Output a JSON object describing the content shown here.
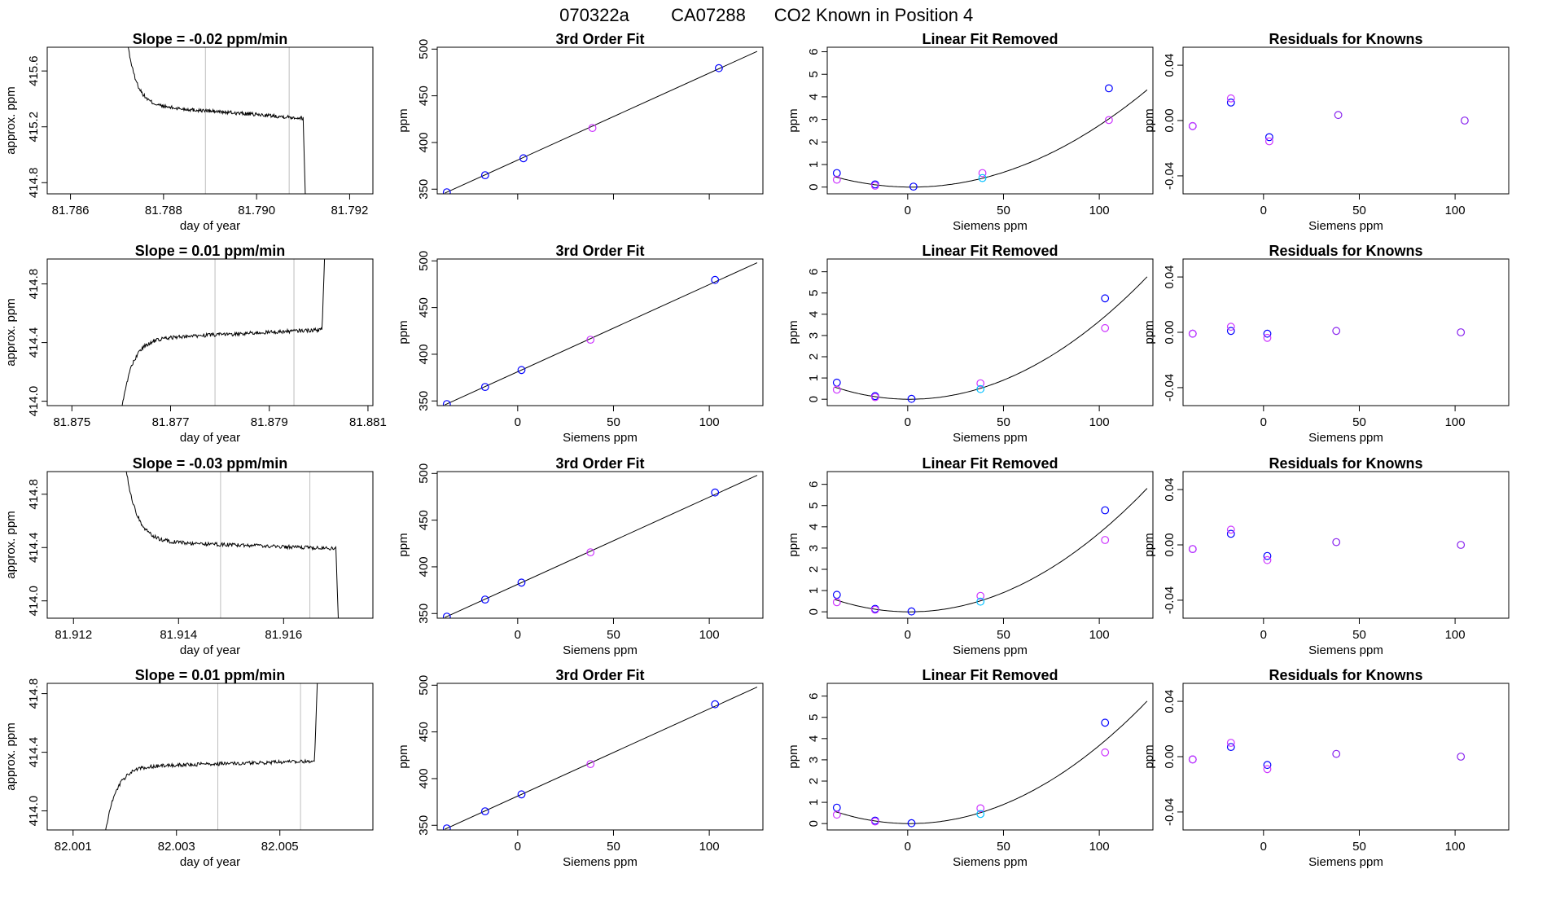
{
  "header": {
    "date": "070322a",
    "instrument": "CA07288",
    "title": "CO2 Known in Position  4"
  },
  "colors": {
    "line": "#000000",
    "frame": "#000000",
    "vline": "#bebebe",
    "blue": "#0000ff",
    "magenta": "#cc33ff",
    "cyan": "#00bfff",
    "purple": "#8822ee"
  },
  "chart_data": [
    {
      "type": "line",
      "title": "Slope =  -0.02  ppm/min",
      "xlabel": "day of year",
      "ylabel": "approx. ppm",
      "xlim": [
        81.7855,
        81.7925
      ],
      "ylim": [
        414.72,
        415.77
      ],
      "xticks": [
        81.786,
        81.788,
        81.79,
        81.792
      ],
      "xtick_labels": [
        "81.786",
        "81.788",
        "81.790",
        "81.792"
      ],
      "yticks": [
        414.8,
        415.2,
        415.6
      ],
      "ytick_labels": [
        "414.8",
        "415.2",
        "415.6"
      ],
      "vlines": [
        81.7889,
        81.7907
      ],
      "trace": {
        "start": 81.7871,
        "end": 81.7911,
        "level_early": 415.36,
        "level_late": 415.26,
        "edge": "drop"
      }
    },
    {
      "type": "line",
      "title": "3rd Order Fit",
      "xlabel": "",
      "ylabel": "ppm",
      "xlim": [
        -42,
        128
      ],
      "ylim": [
        345,
        502
      ],
      "xticks": [
        0,
        50,
        100
      ],
      "xtick_labels": [
        "",
        "",
        ""
      ],
      "yticks": [
        350,
        400,
        450,
        500
      ],
      "ytick_labels": [
        "350",
        "400",
        "450",
        "500"
      ],
      "fit_x": [
        -38,
        125
      ],
      "fit_y": [
        345.8,
        497.6
      ],
      "points": [
        {
          "x": -37,
          "y": 346.7,
          "c": "blue"
        },
        {
          "x": -17,
          "y": 365.0,
          "c": "blue"
        },
        {
          "x": 3,
          "y": 383.1,
          "c": "blue"
        },
        {
          "x": 39,
          "y": 415.6,
          "c": "magenta"
        },
        {
          "x": 105,
          "y": 479.6,
          "c": "blue"
        }
      ]
    },
    {
      "type": "scatter",
      "title": "Linear Fit Removed",
      "xlabel": "Siemens ppm",
      "ylabel": "ppm",
      "xlim": [
        -42,
        128
      ],
      "ylim": [
        -0.3,
        6.2
      ],
      "xticks": [
        0,
        50,
        100
      ],
      "xtick_labels": [
        "0",
        "50",
        "100"
      ],
      "yticks": [
        0,
        1,
        2,
        3,
        4,
        5,
        6
      ],
      "ytick_labels": [
        "0",
        "1",
        "2",
        "3",
        "4",
        "5",
        "6"
      ],
      "curve": {
        "x0": -38,
        "x1": 125,
        "vertex_x": 2,
        "a": 0.000285
      },
      "points": [
        {
          "x": -37,
          "y": 0.62,
          "c": "blue"
        },
        {
          "x": -37,
          "y": 0.33,
          "c": "magenta"
        },
        {
          "x": -17,
          "y": 0.12,
          "c": "blue"
        },
        {
          "x": -17,
          "y": 0.06,
          "c": "magenta"
        },
        {
          "x": 3,
          "y": 0.02,
          "c": "blue"
        },
        {
          "x": 39,
          "y": 0.62,
          "c": "magenta"
        },
        {
          "x": 39,
          "y": 0.4,
          "c": "cyan"
        },
        {
          "x": 105,
          "y": 4.38,
          "c": "blue"
        },
        {
          "x": 105,
          "y": 2.97,
          "c": "magenta"
        }
      ]
    },
    {
      "type": "scatter",
      "title": "Residuals for Knowns",
      "xlabel": "Siemens ppm",
      "ylabel": "ppm",
      "xlim": [
        -42,
        128
      ],
      "ylim": [
        -0.053,
        0.053
      ],
      "xticks": [
        0,
        50,
        100
      ],
      "xtick_labels": [
        "0",
        "50",
        "100"
      ],
      "yticks": [
        -0.04,
        0,
        0.04
      ],
      "ytick_labels": [
        "-0.04",
        "0.00",
        "0.04"
      ],
      "points": [
        {
          "x": -37,
          "y": -0.004,
          "c": "blue"
        },
        {
          "x": -37,
          "y": -0.004,
          "c": "magenta"
        },
        {
          "x": -17,
          "y": 0.013,
          "c": "blue"
        },
        {
          "x": -17,
          "y": 0.016,
          "c": "magenta"
        },
        {
          "x": 3,
          "y": -0.012,
          "c": "blue"
        },
        {
          "x": 3,
          "y": -0.015,
          "c": "magenta"
        },
        {
          "x": 39,
          "y": 0.004,
          "c": "purple"
        },
        {
          "x": 105,
          "y": 0.0,
          "c": "purple"
        }
      ]
    },
    {
      "type": "line",
      "title": "Slope =  0.01  ppm/min",
      "xlabel": "day of year",
      "ylabel": "approx. ppm",
      "xlim": [
        81.8745,
        81.8811
      ],
      "ylim": [
        413.97,
        414.97
      ],
      "xticks": [
        81.875,
        81.877,
        81.879,
        81.881
      ],
      "xtick_labels": [
        "81.875",
        "81.877",
        "81.879",
        "81.881"
      ],
      "yticks": [
        414.0,
        414.4,
        414.8
      ],
      "ytick_labels": [
        "414.0",
        "414.4",
        "414.8"
      ],
      "vlines": [
        81.8779,
        81.8795
      ],
      "trace": {
        "start": 81.8759,
        "end": 81.8802,
        "level_early": 414.42,
        "level_late": 414.49,
        "edge": "rise"
      }
    },
    {
      "type": "line",
      "title": "3rd Order Fit",
      "xlabel": "Siemens ppm",
      "ylabel": "ppm",
      "xlim": [
        -42,
        128
      ],
      "ylim": [
        345,
        502
      ],
      "xticks": [
        0,
        50,
        100
      ],
      "xtick_labels": [
        "0",
        "50",
        "100"
      ],
      "yticks": [
        350,
        400,
        450,
        500
      ],
      "ytick_labels": [
        "350",
        "400",
        "450",
        "500"
      ],
      "fit_x": [
        -38,
        125
      ],
      "fit_y": [
        345.8,
        498.0
      ],
      "points": [
        {
          "x": -37,
          "y": 346.7,
          "c": "blue"
        },
        {
          "x": -17,
          "y": 365.0,
          "c": "blue"
        },
        {
          "x": 2,
          "y": 383.1,
          "c": "blue"
        },
        {
          "x": 38,
          "y": 415.6,
          "c": "magenta"
        },
        {
          "x": 103,
          "y": 479.6,
          "c": "blue"
        }
      ]
    },
    {
      "type": "scatter",
      "title": "Linear Fit Removed",
      "xlabel": "Siemens ppm",
      "ylabel": "ppm",
      "xlim": [
        -42,
        128
      ],
      "ylim": [
        -0.3,
        6.6
      ],
      "xticks": [
        0,
        50,
        100
      ],
      "xtick_labels": [
        "0",
        "50",
        "100"
      ],
      "yticks": [
        0,
        1,
        2,
        3,
        4,
        5,
        6
      ],
      "ytick_labels": [
        "0",
        "1",
        "2",
        "3",
        "4",
        "5",
        "6"
      ],
      "curve": {
        "x0": -38,
        "x1": 125,
        "vertex_x": 1,
        "a": 0.000375
      },
      "points": [
        {
          "x": -37,
          "y": 0.78,
          "c": "blue"
        },
        {
          "x": -37,
          "y": 0.45,
          "c": "magenta"
        },
        {
          "x": -17,
          "y": 0.15,
          "c": "blue"
        },
        {
          "x": -17,
          "y": 0.1,
          "c": "magenta"
        },
        {
          "x": 2,
          "y": 0.02,
          "c": "blue"
        },
        {
          "x": 38,
          "y": 0.75,
          "c": "magenta"
        },
        {
          "x": 38,
          "y": 0.48,
          "c": "cyan"
        },
        {
          "x": 103,
          "y": 4.75,
          "c": "blue"
        },
        {
          "x": 103,
          "y": 3.35,
          "c": "magenta"
        }
      ]
    },
    {
      "type": "scatter",
      "title": "Residuals for Knowns",
      "xlabel": "Siemens ppm",
      "ylabel": "ppm",
      "xlim": [
        -42,
        128
      ],
      "ylim": [
        -0.053,
        0.053
      ],
      "xticks": [
        0,
        50,
        100
      ],
      "xtick_labels": [
        "0",
        "50",
        "100"
      ],
      "yticks": [
        -0.04,
        0,
        0.04
      ],
      "ytick_labels": [
        "-0.04",
        "0.00",
        "0.04"
      ],
      "points": [
        {
          "x": -37,
          "y": -0.001,
          "c": "blue"
        },
        {
          "x": -37,
          "y": -0.001,
          "c": "magenta"
        },
        {
          "x": -17,
          "y": 0.001,
          "c": "blue"
        },
        {
          "x": -17,
          "y": 0.004,
          "c": "magenta"
        },
        {
          "x": 2,
          "y": -0.001,
          "c": "blue"
        },
        {
          "x": 2,
          "y": -0.004,
          "c": "magenta"
        },
        {
          "x": 38,
          "y": 0.001,
          "c": "purple"
        },
        {
          "x": 103,
          "y": 0.0,
          "c": "purple"
        }
      ]
    },
    {
      "type": "line",
      "title": "Slope =  -0.03  ppm/min",
      "xlabel": "day of year",
      "ylabel": "approx. ppm",
      "xlim": [
        81.9115,
        81.9177
      ],
      "ylim": [
        413.87,
        414.97
      ],
      "xticks": [
        81.912,
        81.914,
        81.916
      ],
      "xtick_labels": [
        "81.912",
        "81.914",
        "81.916"
      ],
      "yticks": [
        414.0,
        414.4,
        414.8
      ],
      "ytick_labels": [
        "414.0",
        "414.4",
        "414.8"
      ],
      "vlines": [
        81.9148,
        81.9165
      ],
      "trace": {
        "start": 81.9129,
        "end": 81.9171,
        "level_early": 414.45,
        "level_late": 414.39,
        "edge": "drop"
      }
    },
    {
      "type": "line",
      "title": "3rd Order Fit",
      "xlabel": "Siemens ppm",
      "ylabel": "ppm",
      "xlim": [
        -42,
        128
      ],
      "ylim": [
        345,
        502
      ],
      "xticks": [
        0,
        50,
        100
      ],
      "xtick_labels": [
        "0",
        "50",
        "100"
      ],
      "yticks": [
        350,
        400,
        450,
        500
      ],
      "ytick_labels": [
        "350",
        "400",
        "450",
        "500"
      ],
      "fit_x": [
        -38,
        125
      ],
      "fit_y": [
        345.8,
        498.0
      ],
      "points": [
        {
          "x": -37,
          "y": 346.7,
          "c": "blue"
        },
        {
          "x": -17,
          "y": 365.0,
          "c": "blue"
        },
        {
          "x": 2,
          "y": 383.1,
          "c": "blue"
        },
        {
          "x": 38,
          "y": 415.6,
          "c": "magenta"
        },
        {
          "x": 103,
          "y": 479.6,
          "c": "blue"
        }
      ]
    },
    {
      "type": "scatter",
      "title": "Linear Fit Removed",
      "xlabel": "Siemens ppm",
      "ylabel": "ppm",
      "xlim": [
        -42,
        128
      ],
      "ylim": [
        -0.3,
        6.6
      ],
      "xticks": [
        0,
        50,
        100
      ],
      "xtick_labels": [
        "0",
        "50",
        "100"
      ],
      "yticks": [
        0,
        1,
        2,
        3,
        4,
        5,
        6
      ],
      "ytick_labels": [
        "0",
        "1",
        "2",
        "3",
        "4",
        "5",
        "6"
      ],
      "curve": {
        "x0": -38,
        "x1": 125,
        "vertex_x": 1,
        "a": 0.000378
      },
      "points": [
        {
          "x": -37,
          "y": 0.8,
          "c": "blue"
        },
        {
          "x": -37,
          "y": 0.45,
          "c": "magenta"
        },
        {
          "x": -17,
          "y": 0.14,
          "c": "blue"
        },
        {
          "x": -17,
          "y": 0.1,
          "c": "magenta"
        },
        {
          "x": 2,
          "y": 0.02,
          "c": "blue"
        },
        {
          "x": 38,
          "y": 0.75,
          "c": "magenta"
        },
        {
          "x": 38,
          "y": 0.48,
          "c": "cyan"
        },
        {
          "x": 103,
          "y": 4.78,
          "c": "blue"
        },
        {
          "x": 103,
          "y": 3.38,
          "c": "magenta"
        }
      ]
    },
    {
      "type": "scatter",
      "title": "Residuals for Knowns",
      "xlabel": "Siemens ppm",
      "ylabel": "ppm",
      "xlim": [
        -42,
        128
      ],
      "ylim": [
        -0.053,
        0.053
      ],
      "xticks": [
        0,
        50,
        100
      ],
      "xtick_labels": [
        "0",
        "50",
        "100"
      ],
      "yticks": [
        -0.04,
        0,
        0.04
      ],
      "ytick_labels": [
        "-0.04",
        "0.00",
        "0.04"
      ],
      "points": [
        {
          "x": -37,
          "y": -0.003,
          "c": "blue"
        },
        {
          "x": -37,
          "y": -0.003,
          "c": "magenta"
        },
        {
          "x": -17,
          "y": 0.008,
          "c": "blue"
        },
        {
          "x": -17,
          "y": 0.011,
          "c": "magenta"
        },
        {
          "x": 2,
          "y": -0.008,
          "c": "blue"
        },
        {
          "x": 2,
          "y": -0.011,
          "c": "magenta"
        },
        {
          "x": 38,
          "y": 0.002,
          "c": "purple"
        },
        {
          "x": 103,
          "y": 0.0,
          "c": "purple"
        }
      ]
    },
    {
      "type": "line",
      "title": "Slope =  0.01  ppm/min",
      "xlabel": "day of year",
      "ylabel": "approx. ppm",
      "xlim": [
        82.0005,
        82.0068
      ],
      "ylim": [
        413.87,
        414.87
      ],
      "xticks": [
        82.001,
        82.003,
        82.005
      ],
      "xtick_labels": [
        "82.001",
        "82.003",
        "82.005"
      ],
      "yticks": [
        414.0,
        414.4,
        414.8
      ],
      "ytick_labels": [
        "414.0",
        "414.4",
        "414.8"
      ],
      "vlines": [
        82.0038,
        82.0054
      ],
      "trace": {
        "start": 82.0015,
        "end": 82.0058,
        "level_early": 414.3,
        "level_late": 414.34,
        "edge": "rise"
      }
    },
    {
      "type": "line",
      "title": "3rd Order Fit",
      "xlabel": "Siemens ppm",
      "ylabel": "ppm",
      "xlim": [
        -42,
        128
      ],
      "ylim": [
        345,
        502
      ],
      "xticks": [
        0,
        50,
        100
      ],
      "xtick_labels": [
        "0",
        "50",
        "100"
      ],
      "yticks": [
        350,
        400,
        450,
        500
      ],
      "ytick_labels": [
        "350",
        "400",
        "450",
        "500"
      ],
      "fit_x": [
        -38,
        125
      ],
      "fit_y": [
        345.8,
        498.0
      ],
      "points": [
        {
          "x": -37,
          "y": 346.7,
          "c": "blue"
        },
        {
          "x": -17,
          "y": 365.0,
          "c": "blue"
        },
        {
          "x": 2,
          "y": 383.1,
          "c": "blue"
        },
        {
          "x": 38,
          "y": 415.6,
          "c": "magenta"
        },
        {
          "x": 103,
          "y": 479.6,
          "c": "blue"
        }
      ]
    },
    {
      "type": "scatter",
      "title": "Linear Fit Removed",
      "xlabel": "Siemens ppm",
      "ylabel": "ppm",
      "xlim": [
        -42,
        128
      ],
      "ylim": [
        -0.3,
        6.6
      ],
      "xticks": [
        0,
        50,
        100
      ],
      "xtick_labels": [
        "0",
        "50",
        "100"
      ],
      "yticks": [
        0,
        1,
        2,
        3,
        4,
        5,
        6
      ],
      "ytick_labels": [
        "0",
        "1",
        "2",
        "3",
        "4",
        "5",
        "6"
      ],
      "curve": {
        "x0": -38,
        "x1": 125,
        "vertex_x": 1,
        "a": 0.000375
      },
      "points": [
        {
          "x": -37,
          "y": 0.75,
          "c": "blue"
        },
        {
          "x": -37,
          "y": 0.42,
          "c": "magenta"
        },
        {
          "x": -17,
          "y": 0.14,
          "c": "blue"
        },
        {
          "x": -17,
          "y": 0.1,
          "c": "magenta"
        },
        {
          "x": 2,
          "y": 0.02,
          "c": "blue"
        },
        {
          "x": 38,
          "y": 0.72,
          "c": "magenta"
        },
        {
          "x": 38,
          "y": 0.45,
          "c": "cyan"
        },
        {
          "x": 103,
          "y": 4.75,
          "c": "blue"
        },
        {
          "x": 103,
          "y": 3.35,
          "c": "magenta"
        }
      ]
    },
    {
      "type": "scatter",
      "title": "Residuals for Knowns",
      "xlabel": "Siemens ppm",
      "ylabel": "ppm",
      "xlim": [
        -42,
        128
      ],
      "ylim": [
        -0.053,
        0.053
      ],
      "xticks": [
        0,
        50,
        100
      ],
      "xtick_labels": [
        "0",
        "50",
        "100"
      ],
      "yticks": [
        -0.04,
        0,
        0.04
      ],
      "ytick_labels": [
        "-0.04",
        "0.00",
        "0.04"
      ],
      "points": [
        {
          "x": -37,
          "y": -0.002,
          "c": "blue"
        },
        {
          "x": -37,
          "y": -0.002,
          "c": "magenta"
        },
        {
          "x": -17,
          "y": 0.007,
          "c": "blue"
        },
        {
          "x": -17,
          "y": 0.01,
          "c": "magenta"
        },
        {
          "x": 2,
          "y": -0.006,
          "c": "blue"
        },
        {
          "x": 2,
          "y": -0.009,
          "c": "magenta"
        },
        {
          "x": 38,
          "y": 0.002,
          "c": "purple"
        },
        {
          "x": 103,
          "y": 0.0,
          "c": "purple"
        }
      ]
    }
  ]
}
